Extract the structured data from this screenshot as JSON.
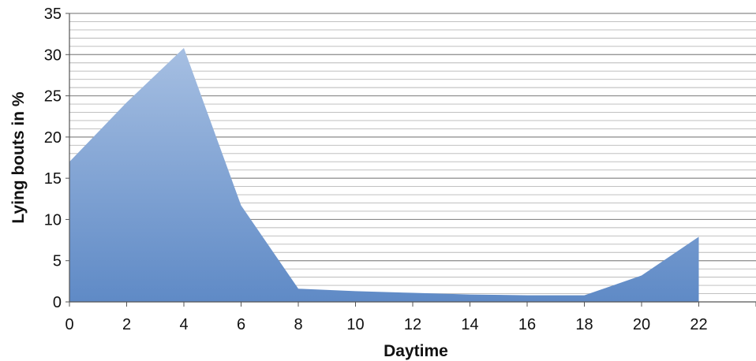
{
  "chart_data": {
    "type": "area",
    "title": "",
    "xlabel": "Daytime",
    "ylabel": "Lying bouts in %",
    "x": [
      0,
      2,
      4,
      6,
      8,
      10,
      12,
      14,
      16,
      18,
      20,
      22
    ],
    "series": [
      {
        "values": [
          17,
          24.2,
          30.8,
          11.7,
          1.6,
          1.3,
          1.1,
          0.9,
          0.8,
          0.8,
          3.2,
          7.9
        ]
      }
    ],
    "xlim": [
      0,
      24
    ],
    "ylim": [
      0,
      35
    ],
    "xticks": [
      "0",
      "2",
      "4",
      "6",
      "8",
      "10",
      "12",
      "14",
      "16",
      "18",
      "20",
      "22"
    ],
    "yticks": [
      "0",
      "5",
      "10",
      "15",
      "20",
      "25",
      "30",
      "35"
    ],
    "minor_gridline_step": 1,
    "grid": true,
    "legend": "none",
    "colors": {
      "fill_top": "#a6bfe2",
      "fill_bottom": "#5f8ac6",
      "grid_major": "#8a8a8a",
      "grid_minor": "#b8b8b8",
      "axis": "#555555"
    }
  }
}
